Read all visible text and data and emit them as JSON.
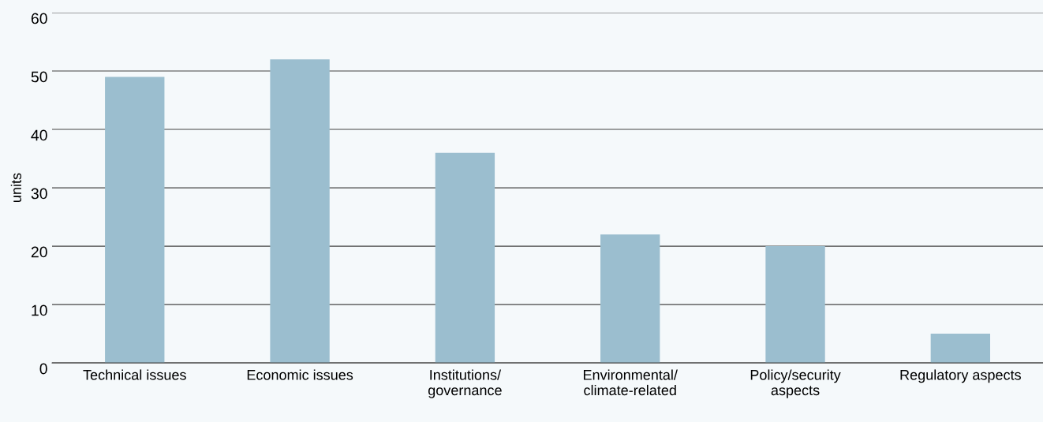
{
  "chart_data": {
    "type": "bar",
    "ylabel": "units",
    "categories": [
      "Technical issues",
      "Economic issues",
      "Institutions/\ngovernance",
      "Environmental/\nclimate-related",
      "Policy/security\naspects",
      "Regulatory aspects"
    ],
    "values": [
      49,
      52,
      36,
      22,
      20,
      5
    ],
    "color": "#9bbecf",
    "ylim": [
      0,
      60
    ],
    "yticks": [
      0,
      10,
      20,
      30,
      40,
      50,
      60
    ],
    "grid": "y",
    "legend": false
  }
}
